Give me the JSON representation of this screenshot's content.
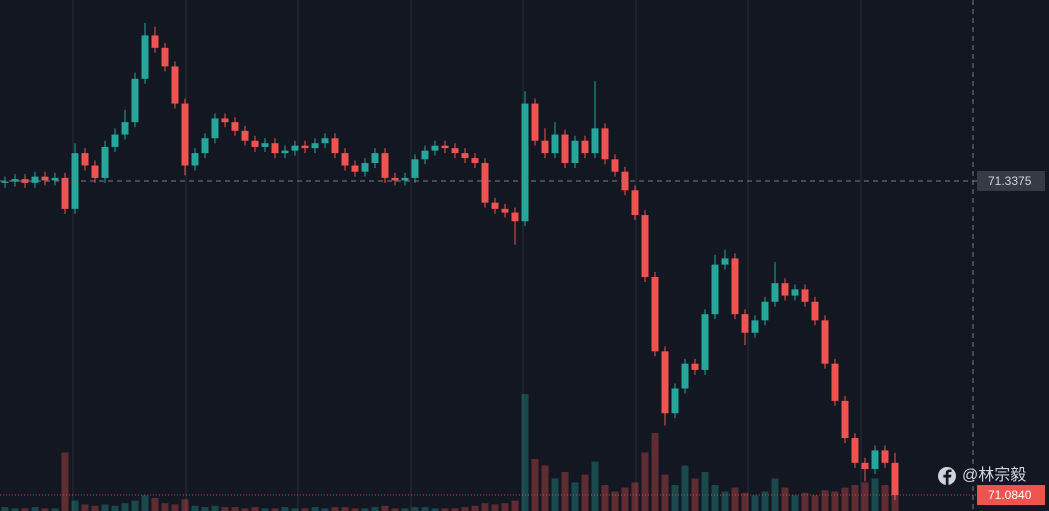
{
  "chart_data": {
    "type": "candlestick",
    "ylim": [
      71.0711,
      71.4836
    ],
    "up_color": "#26a69a",
    "down_color": "#ef5350",
    "open": [
      71.336,
      71.337,
      71.339,
      71.336,
      71.341,
      71.338,
      71.34,
      71.315,
      71.36,
      71.35,
      71.34,
      71.365,
      71.375,
      71.385,
      71.42,
      71.455,
      71.445,
      71.43,
      71.4,
      71.35,
      71.36,
      71.372,
      71.388,
      71.385,
      71.378,
      71.37,
      71.365,
      71.368,
      71.36,
      71.362,
      71.366,
      71.364,
      71.368,
      71.372,
      71.36,
      71.35,
      71.345,
      71.352,
      71.36,
      71.34,
      71.338,
      71.34,
      71.355,
      71.362,
      71.366,
      71.364,
      71.36,
      71.356,
      71.352,
      71.32,
      71.315,
      71.312,
      71.305,
      71.4,
      71.37,
      71.36,
      71.375,
      71.352,
      71.37,
      71.36,
      71.38,
      71.355,
      71.345,
      71.33,
      71.31,
      71.26,
      71.2,
      71.15,
      71.17,
      71.19,
      71.185,
      71.23,
      71.27,
      71.275,
      71.23,
      71.215,
      71.225,
      71.24,
      71.255,
      71.245,
      71.25,
      71.24,
      71.225,
      71.19,
      71.16,
      71.13,
      71.11,
      71.105,
      71.12,
      71.11
    ],
    "high": [
      71.341,
      71.343,
      71.343,
      71.345,
      71.345,
      71.344,
      71.344,
      71.368,
      71.364,
      71.354,
      71.37,
      71.38,
      71.395,
      71.425,
      71.465,
      71.462,
      71.449,
      71.434,
      71.404,
      71.364,
      71.376,
      71.392,
      71.392,
      71.389,
      71.382,
      71.374,
      71.372,
      71.372,
      71.366,
      71.37,
      71.37,
      71.372,
      71.376,
      71.376,
      71.364,
      71.354,
      71.356,
      71.364,
      71.364,
      71.344,
      71.344,
      71.359,
      71.366,
      71.37,
      71.37,
      71.368,
      71.364,
      71.36,
      71.356,
      71.324,
      71.319,
      71.316,
      71.41,
      71.404,
      71.38,
      71.385,
      71.379,
      71.374,
      71.374,
      71.418,
      71.384,
      71.359,
      71.349,
      71.334,
      71.314,
      71.264,
      71.204,
      71.174,
      71.194,
      71.194,
      71.234,
      71.278,
      71.282,
      71.279,
      71.234,
      71.229,
      71.244,
      71.272,
      71.259,
      71.254,
      71.254,
      71.244,
      71.229,
      71.194,
      71.164,
      71.134,
      71.114,
      71.124,
      71.124,
      71.118
    ],
    "low": [
      71.332,
      71.333,
      71.332,
      71.332,
      71.334,
      71.334,
      71.311,
      71.311,
      71.346,
      71.336,
      71.336,
      71.361,
      71.371,
      71.381,
      71.416,
      71.441,
      71.426,
      71.396,
      71.342,
      71.346,
      71.356,
      71.368,
      71.381,
      71.374,
      71.366,
      71.361,
      71.361,
      71.356,
      71.356,
      71.358,
      71.36,
      71.36,
      71.364,
      71.356,
      71.346,
      71.341,
      71.341,
      71.348,
      71.336,
      71.334,
      71.334,
      71.336,
      71.351,
      71.358,
      71.36,
      71.356,
      71.352,
      71.348,
      71.316,
      71.311,
      71.308,
      71.286,
      71.301,
      71.366,
      71.356,
      71.356,
      71.348,
      71.348,
      71.356,
      71.356,
      71.351,
      71.341,
      71.326,
      71.306,
      71.256,
      71.196,
      71.14,
      71.146,
      71.166,
      71.181,
      71.181,
      71.226,
      71.266,
      71.226,
      71.205,
      71.211,
      71.221,
      71.236,
      71.241,
      71.241,
      71.236,
      71.221,
      71.186,
      71.156,
      71.126,
      71.106,
      71.095,
      71.101,
      71.106,
      71.08
    ],
    "close": [
      71.337,
      71.339,
      71.336,
      71.341,
      71.338,
      71.34,
      71.315,
      71.36,
      71.35,
      71.34,
      71.365,
      71.375,
      71.385,
      71.42,
      71.455,
      71.445,
      71.43,
      71.4,
      71.35,
      71.36,
      71.372,
      71.388,
      71.385,
      71.378,
      71.37,
      71.365,
      71.368,
      71.36,
      71.362,
      71.366,
      71.364,
      71.368,
      71.372,
      71.36,
      71.35,
      71.345,
      71.352,
      71.36,
      71.34,
      71.338,
      71.34,
      71.355,
      71.362,
      71.366,
      71.364,
      71.36,
      71.356,
      71.352,
      71.32,
      71.315,
      71.312,
      71.305,
      71.4,
      71.37,
      71.36,
      71.375,
      71.352,
      71.37,
      71.36,
      71.38,
      71.355,
      71.345,
      71.33,
      71.31,
      71.26,
      71.2,
      71.15,
      71.17,
      71.19,
      71.185,
      71.23,
      71.27,
      71.275,
      71.23,
      71.215,
      71.225,
      71.24,
      71.255,
      71.245,
      71.25,
      71.24,
      71.225,
      71.19,
      71.16,
      71.13,
      71.11,
      71.105,
      71.12,
      71.11,
      71.084
    ],
    "volume": [
      3,
      2,
      2,
      3,
      2,
      2,
      45,
      8,
      5,
      4,
      5,
      4,
      6,
      8,
      12,
      10,
      6,
      5,
      9,
      4,
      3,
      4,
      3,
      3,
      2,
      3,
      2,
      2,
      3,
      2,
      2,
      3,
      2,
      3,
      3,
      2,
      2,
      3,
      4,
      2,
      2,
      3,
      3,
      2,
      2,
      2,
      3,
      4,
      6,
      5,
      6,
      8,
      90,
      40,
      35,
      25,
      30,
      22,
      28,
      38,
      20,
      15,
      18,
      22,
      45,
      60,
      28,
      20,
      35,
      25,
      30,
      20,
      15,
      18,
      14,
      12,
      15,
      25,
      18,
      12,
      14,
      12,
      16,
      15,
      18,
      20,
      22,
      25,
      20,
      15
    ],
    "volume_ylim": [
      0,
      100
    ],
    "crosshair_price": 71.3375,
    "last_price": {
      "value": 71.084,
      "label": "71.0840"
    },
    "watermark": "@林宗毅"
  }
}
